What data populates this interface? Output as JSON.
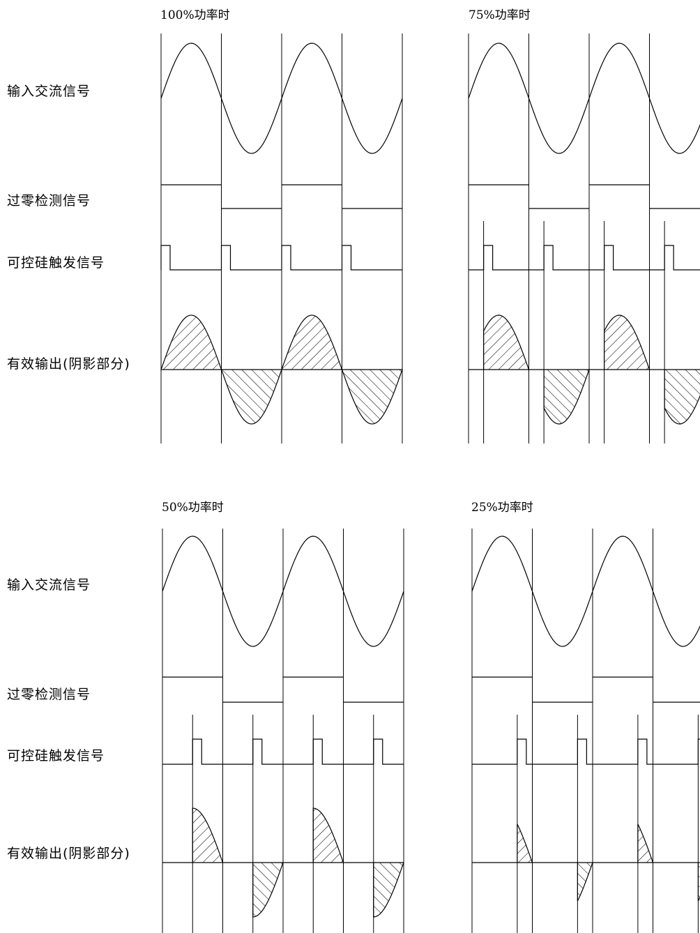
{
  "row_labels": {
    "input": "输入交流信号",
    "zero": "过零检测信号",
    "trigger": "可控硅触发信号",
    "output": "有效输出(阴影部分)"
  },
  "panels": [
    {
      "id": "p100",
      "title": "100%功率时",
      "power_fraction": 1.0
    },
    {
      "id": "p75",
      "title": "75%功率时",
      "power_fraction": 0.75
    },
    {
      "id": "p50",
      "title": "50%功率时",
      "power_fraction": 0.5
    },
    {
      "id": "p25",
      "title": "25%功率时",
      "power_fraction": 0.25
    }
  ],
  "colors": {
    "line": "#000000",
    "background": "#ffffff"
  }
}
